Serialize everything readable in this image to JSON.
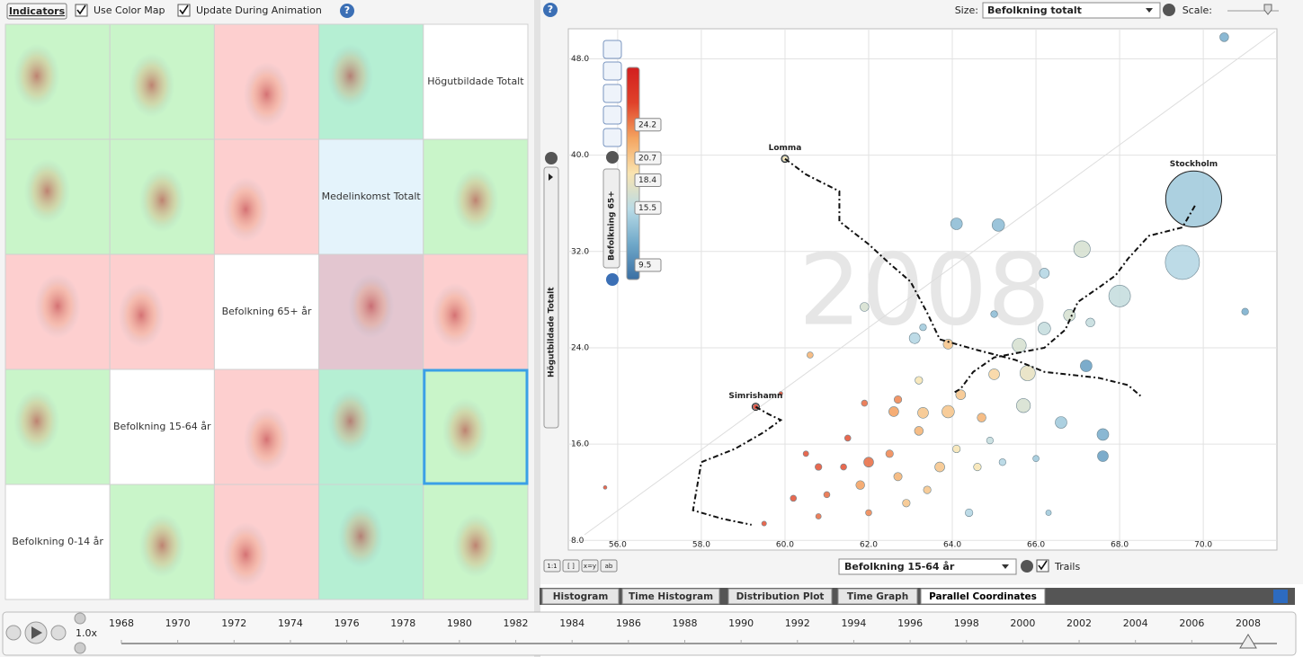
{
  "toolbar": {
    "indicators": "Indicators",
    "use_color_map": "Use Color Map",
    "update_during_animation": "Update During Animation"
  },
  "matrix": {
    "labels": [
      "Högutbildade Totalt",
      "Medelinkomst Totalt",
      "Befolkning 65+ år",
      "Befolkning 15-64 år",
      "Befolkning 0-14 år"
    ],
    "cell_colors": [
      [
        "#c9f5c9",
        "#c9f5c9",
        "#fdcfcf",
        "#b5efd3",
        "#ffffff"
      ],
      [
        "#c9f5c9",
        "#c9f5c9",
        "#fdcfcf",
        "#e4f3fb",
        "#c9f5c9"
      ],
      [
        "#fdcfcf",
        "#fdcfcf",
        "#ffffff",
        "#e3c6d0",
        "#fdcfcf"
      ],
      [
        "#c9f5c9",
        "#ffffff",
        "#fdcfcf",
        "#b5efd3",
        "#c9f5c9"
      ],
      [
        "#ffffff",
        "#c9f5c9",
        "#fdcfcf",
        "#b5efd3",
        "#c9f5c9"
      ]
    ],
    "selected": [
      3,
      4
    ]
  },
  "size_control": {
    "label": "Size:",
    "value": "Befolkning totalt",
    "scale_label": "Scale:"
  },
  "chart_data": {
    "type": "scatter",
    "watermark": "2008",
    "y_label": "Högutbildade Totalt",
    "x_selector": "Befolkning 15-64 år",
    "trails_label": "Trails",
    "xlim": [
      54.82,
      71.76
    ],
    "ylim": [
      7.2,
      50.5
    ],
    "xticks": [
      {
        "value": 56,
        "label": "56.0"
      },
      {
        "value": 58,
        "label": "58.0"
      },
      {
        "value": 60,
        "label": "60.0"
      },
      {
        "value": 62,
        "label": "62.0"
      },
      {
        "value": 64,
        "label": "64.0"
      },
      {
        "value": 66,
        "label": "66.0"
      },
      {
        "value": 68,
        "label": "68.0"
      },
      {
        "value": 70,
        "label": "70.0"
      }
    ],
    "yticks": [
      {
        "value": 8,
        "label": "8.0"
      },
      {
        "value": 16,
        "label": "16.0"
      },
      {
        "value": 24,
        "label": "24.0"
      },
      {
        "value": 32,
        "label": "32.0"
      },
      {
        "value": 40,
        "label": "40.0"
      },
      {
        "value": 48,
        "label": "48.0"
      }
    ],
    "grid": true,
    "colorbar": {
      "title": "Befolkning 65+",
      "lim": [
        8.0,
        30.2
      ],
      "ticks": [
        24.2,
        20.7,
        18.4,
        15.5,
        9.5
      ],
      "colors": [
        "#3a6fa3",
        "#6fa8c9",
        "#b9dbe6",
        "#f9e4b0",
        "#f4a460",
        "#e0422a",
        "#d21f1f"
      ]
    },
    "points": [
      {
        "x": 70.5,
        "y": 49.8,
        "size": 20,
        "color_value": 12
      },
      {
        "x": 69.77,
        "y": 36.36,
        "size": 800,
        "color_value": 14,
        "name": "Stockholm"
      },
      {
        "x": 69.5,
        "y": 31.1,
        "size": 300,
        "color_value": 15
      },
      {
        "x": 68.0,
        "y": 28.3,
        "size": 120,
        "color_value": 16
      },
      {
        "x": 67.1,
        "y": 32.2,
        "size": 70,
        "color_value": 17
      },
      {
        "x": 65.1,
        "y": 34.2,
        "size": 40,
        "color_value": 13
      },
      {
        "x": 64.1,
        "y": 34.3,
        "size": 35,
        "color_value": 13
      },
      {
        "x": 66.2,
        "y": 30.2,
        "size": 25,
        "color_value": 15
      },
      {
        "x": 71.0,
        "y": 27.0,
        "size": 12,
        "color_value": 12
      },
      {
        "x": 66.8,
        "y": 26.7,
        "size": 35,
        "color_value": 17
      },
      {
        "x": 66.2,
        "y": 25.6,
        "size": 40,
        "color_value": 16
      },
      {
        "x": 67.3,
        "y": 26.1,
        "size": 20,
        "color_value": 16
      },
      {
        "x": 67.2,
        "y": 22.5,
        "size": 35,
        "color_value": 11
      },
      {
        "x": 65.6,
        "y": 24.2,
        "size": 50,
        "color_value": 17
      },
      {
        "x": 63.1,
        "y": 24.8,
        "size": 30,
        "color_value": 15
      },
      {
        "x": 63.9,
        "y": 24.3,
        "size": 25,
        "color_value": 21
      },
      {
        "x": 65.8,
        "y": 21.9,
        "size": 60,
        "color_value": 18
      },
      {
        "x": 65.0,
        "y": 21.8,
        "size": 30,
        "color_value": 20
      },
      {
        "x": 65.7,
        "y": 19.2,
        "size": 50,
        "color_value": 17
      },
      {
        "x": 66.6,
        "y": 17.8,
        "size": 35,
        "color_value": 14
      },
      {
        "x": 67.6,
        "y": 16.8,
        "size": 35,
        "color_value": 12
      },
      {
        "x": 67.6,
        "y": 15.0,
        "size": 30,
        "color_value": 11
      },
      {
        "x": 63.9,
        "y": 18.7,
        "size": 40,
        "color_value": 21
      },
      {
        "x": 63.3,
        "y": 18.6,
        "size": 30,
        "color_value": 21
      },
      {
        "x": 62.6,
        "y": 18.7,
        "size": 25,
        "color_value": 23
      },
      {
        "x": 62.7,
        "y": 19.7,
        "size": 15,
        "color_value": 24
      },
      {
        "x": 64.7,
        "y": 18.2,
        "size": 20,
        "color_value": 22
      },
      {
        "x": 64.2,
        "y": 20.1,
        "size": 25,
        "color_value": 21
      },
      {
        "x": 63.2,
        "y": 17.1,
        "size": 20,
        "color_value": 22
      },
      {
        "x": 62.5,
        "y": 15.2,
        "size": 15,
        "color_value": 24
      },
      {
        "x": 63.7,
        "y": 14.1,
        "size": 25,
        "color_value": 21
      },
      {
        "x": 64.1,
        "y": 15.6,
        "size": 15,
        "color_value": 19
      },
      {
        "x": 64.6,
        "y": 14.1,
        "size": 15,
        "color_value": 19
      },
      {
        "x": 62.0,
        "y": 14.5,
        "size": 25,
        "color_value": 25
      },
      {
        "x": 61.8,
        "y": 12.6,
        "size": 20,
        "color_value": 23
      },
      {
        "x": 62.7,
        "y": 13.3,
        "size": 18,
        "color_value": 22
      },
      {
        "x": 63.4,
        "y": 12.2,
        "size": 15,
        "color_value": 21
      },
      {
        "x": 62.9,
        "y": 11.1,
        "size": 15,
        "color_value": 21
      },
      {
        "x": 61.4,
        "y": 14.1,
        "size": 10,
        "color_value": 26
      },
      {
        "x": 60.8,
        "y": 14.1,
        "size": 12,
        "color_value": 26
      },
      {
        "x": 60.5,
        "y": 15.2,
        "size": 8,
        "color_value": 26
      },
      {
        "x": 60.2,
        "y": 11.5,
        "size": 10,
        "color_value": 26
      },
      {
        "x": 61.0,
        "y": 11.8,
        "size": 10,
        "color_value": 25
      },
      {
        "x": 62.0,
        "y": 10.3,
        "size": 10,
        "color_value": 24
      },
      {
        "x": 60.8,
        "y": 10.0,
        "size": 8,
        "color_value": 25
      },
      {
        "x": 59.5,
        "y": 9.4,
        "size": 6,
        "color_value": 26
      },
      {
        "x": 60.6,
        "y": 23.4,
        "size": 10,
        "color_value": 22
      },
      {
        "x": 61.5,
        "y": 16.5,
        "size": 10,
        "color_value": 26
      },
      {
        "x": 61.9,
        "y": 19.4,
        "size": 10,
        "color_value": 25
      },
      {
        "x": 64.4,
        "y": 10.3,
        "size": 15,
        "color_value": 15
      },
      {
        "x": 64.9,
        "y": 16.3,
        "size": 12,
        "color_value": 16
      },
      {
        "x": 65.2,
        "y": 14.5,
        "size": 12,
        "color_value": 15
      },
      {
        "x": 66.0,
        "y": 14.8,
        "size": 10,
        "color_value": 14
      },
      {
        "x": 66.3,
        "y": 10.3,
        "size": 8,
        "color_value": 14
      },
      {
        "x": 63.2,
        "y": 21.3,
        "size": 15,
        "color_value": 19
      },
      {
        "x": 61.9,
        "y": 27.4,
        "size": 20,
        "color_value": 17
      },
      {
        "x": 63.3,
        "y": 25.7,
        "size": 12,
        "color_value": 14
      },
      {
        "x": 65.0,
        "y": 26.8,
        "size": 12,
        "color_value": 13
      },
      {
        "x": 55.7,
        "y": 12.4,
        "size": 3,
        "color_value": 26
      },
      {
        "x": 59.9,
        "y": 20.2,
        "size": 4,
        "color_value": 26
      },
      {
        "x": 60.0,
        "y": 39.7,
        "size": 8,
        "color_value": 19,
        "name": "Lomma"
      },
      {
        "x": 59.3,
        "y": 19.1,
        "size": 8,
        "color_value": 27,
        "name": "Simrishamn"
      }
    ],
    "trails": [
      {
        "x": [
          60.0,
          60.5,
          61.3,
          61.3,
          62.0,
          62.5,
          63.0,
          63.4,
          63.7,
          64.5,
          65.5,
          66.2,
          67.5,
          68.2,
          68.5
        ],
        "y": [
          39.7,
          38.4,
          37.0,
          34.5,
          32.6,
          31.0,
          29.5,
          26.9,
          24.7,
          23.9,
          23.0,
          22.0,
          21.5,
          20.9,
          20.0
        ]
      },
      {
        "x": [
          69.8,
          69.5,
          68.7,
          68.2,
          67.9,
          67.5,
          67.0,
          66.7,
          66.2,
          65.0,
          64.5,
          64.2,
          64.0
        ],
        "y": [
          35.8,
          34.0,
          33.3,
          31.4,
          30.0,
          29.0,
          27.8,
          25.5,
          24.0,
          23.2,
          22.0,
          20.6,
          20.2
        ]
      },
      {
        "x": [
          59.3,
          59.6,
          59.9,
          59.5,
          58.8,
          58.0,
          57.9,
          57.8,
          58.5,
          59.2
        ],
        "y": [
          19.1,
          18.5,
          18.0,
          17.0,
          15.6,
          14.5,
          12.5,
          10.5,
          9.8,
          9.3
        ]
      }
    ]
  },
  "axis_buttons": [
    "1:1",
    "[ ]",
    "x=y",
    "ab"
  ],
  "tabs": [
    "Histogram",
    "Time Histogram",
    "Distribution Plot",
    "Time Graph",
    "Parallel Coordinates"
  ],
  "active_tab": 4,
  "timeline": {
    "speed": "1.0x",
    "years": [
      1968,
      1970,
      1972,
      1974,
      1976,
      1978,
      1980,
      1982,
      1984,
      1986,
      1988,
      1990,
      1992,
      1994,
      1996,
      1998,
      2000,
      2002,
      2004,
      2006,
      2008
    ],
    "current": 2008
  }
}
